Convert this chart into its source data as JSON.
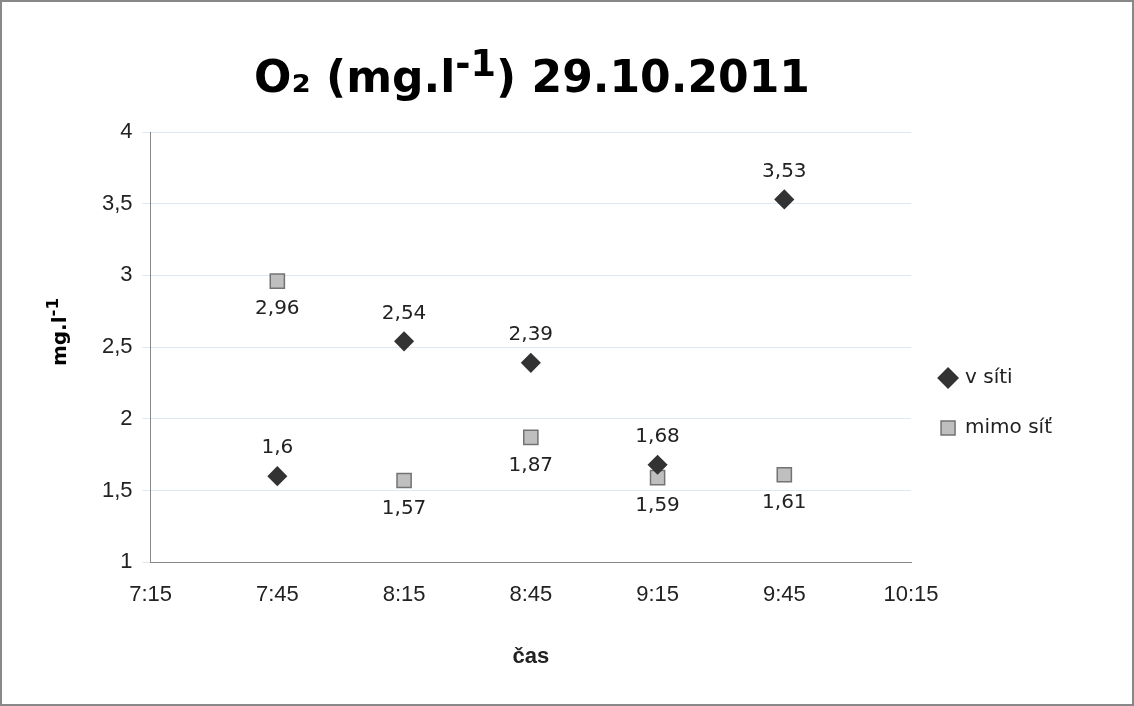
{
  "chart_data": {
    "type": "scatter",
    "title": "O₂ (mg.l$^{-1}$) 29.10.2011",
    "xlabel": "čas",
    "ylabel": "mg.l$^{-1}$",
    "xlim": [
      7.25,
      10.25
    ],
    "xticks": [
      {
        "value": 7.25,
        "label": "7:15"
      },
      {
        "value": 7.75,
        "label": "7:45"
      },
      {
        "value": 8.25,
        "label": "8:15"
      },
      {
        "value": 8.75,
        "label": "8:45"
      },
      {
        "value": 9.25,
        "label": "9:15"
      },
      {
        "value": 9.75,
        "label": "9:45"
      },
      {
        "value": 10.25,
        "label": "10:15"
      }
    ],
    "ylim": [
      1,
      4
    ],
    "yticks": [
      1,
      {
        "value": 1.5,
        "label": "1,5"
      },
      2,
      {
        "value": 2.5,
        "label": "2,5"
      },
      3,
      {
        "value": 3.5,
        "label": "3,5"
      },
      4
    ],
    "grid": "y",
    "legend": "right",
    "series": [
      {
        "name": "v síti",
        "color": "#333333",
        "marker": "diamond",
        "x": [
          7.75,
          8.25,
          8.75,
          9.25,
          9.75
        ],
        "values": [
          1.6,
          2.54,
          2.39,
          1.68,
          3.53
        ],
        "value_labels": [
          "1,6",
          "2,54",
          "2,39",
          "1,68",
          "3,53"
        ]
      },
      {
        "name": "mimo síť",
        "color": "#bfbfbf",
        "marker": "square",
        "x": [
          7.75,
          8.25,
          8.75,
          9.25,
          9.75
        ],
        "values": [
          2.96,
          1.57,
          1.87,
          1.59,
          1.61
        ],
        "value_labels": [
          "2,96",
          "1,57",
          "1,87",
          "1,59",
          "1,61"
        ]
      }
    ]
  }
}
